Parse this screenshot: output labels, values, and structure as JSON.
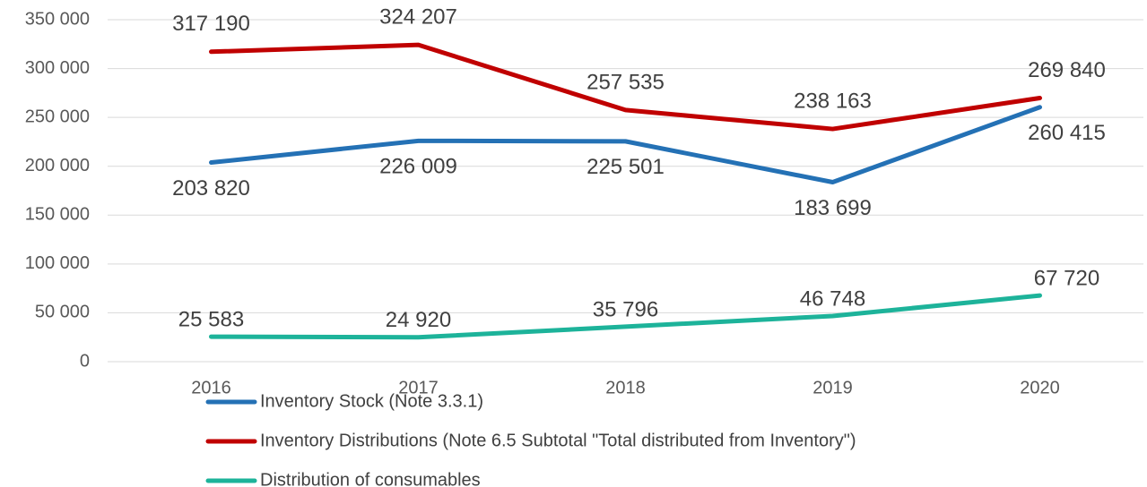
{
  "chart_data": {
    "type": "line",
    "categories": [
      "2016",
      "2017",
      "2018",
      "2019",
      "2020"
    ],
    "series": [
      {
        "name": "Inventory Stock (Note 3.3.1)",
        "color": "#2471b5",
        "values": [
          203820,
          226009,
          225501,
          183699,
          260415
        ],
        "value_labels": [
          "203 820",
          "226 009",
          "225 501",
          "183 699",
          "260 415"
        ]
      },
      {
        "name": "Inventory Distributions (Note 6.5 Subtotal \"Total distributed from Inventory\")",
        "color": "#c00000",
        "values": [
          317190,
          324207,
          257535,
          238163,
          269840
        ],
        "value_labels": [
          "317 190",
          "324 207",
          "257 535",
          "238 163",
          "269 840"
        ]
      },
      {
        "name": "Distribution of consumables",
        "color": "#1db39a",
        "values": [
          25583,
          24920,
          35796,
          46748,
          67720
        ],
        "value_labels": [
          "25 583",
          "24 920",
          "35 796",
          "46 748",
          "67 720"
        ]
      }
    ],
    "ylim": [
      0,
      350000
    ],
    "yticks": [
      0,
      {
        "value": 50000,
        "label": "50 000"
      },
      {
        "value": 100000,
        "label": "100 000"
      },
      {
        "value": 150000,
        "label": "150 000"
      },
      {
        "value": 200000,
        "label": "200 000"
      },
      {
        "value": 250000,
        "label": "250 000"
      },
      {
        "value": 300000,
        "label": "300 000"
      },
      {
        "value": 350000,
        "label": "350 000"
      }
    ],
    "grid": true,
    "legend": "bottom"
  }
}
